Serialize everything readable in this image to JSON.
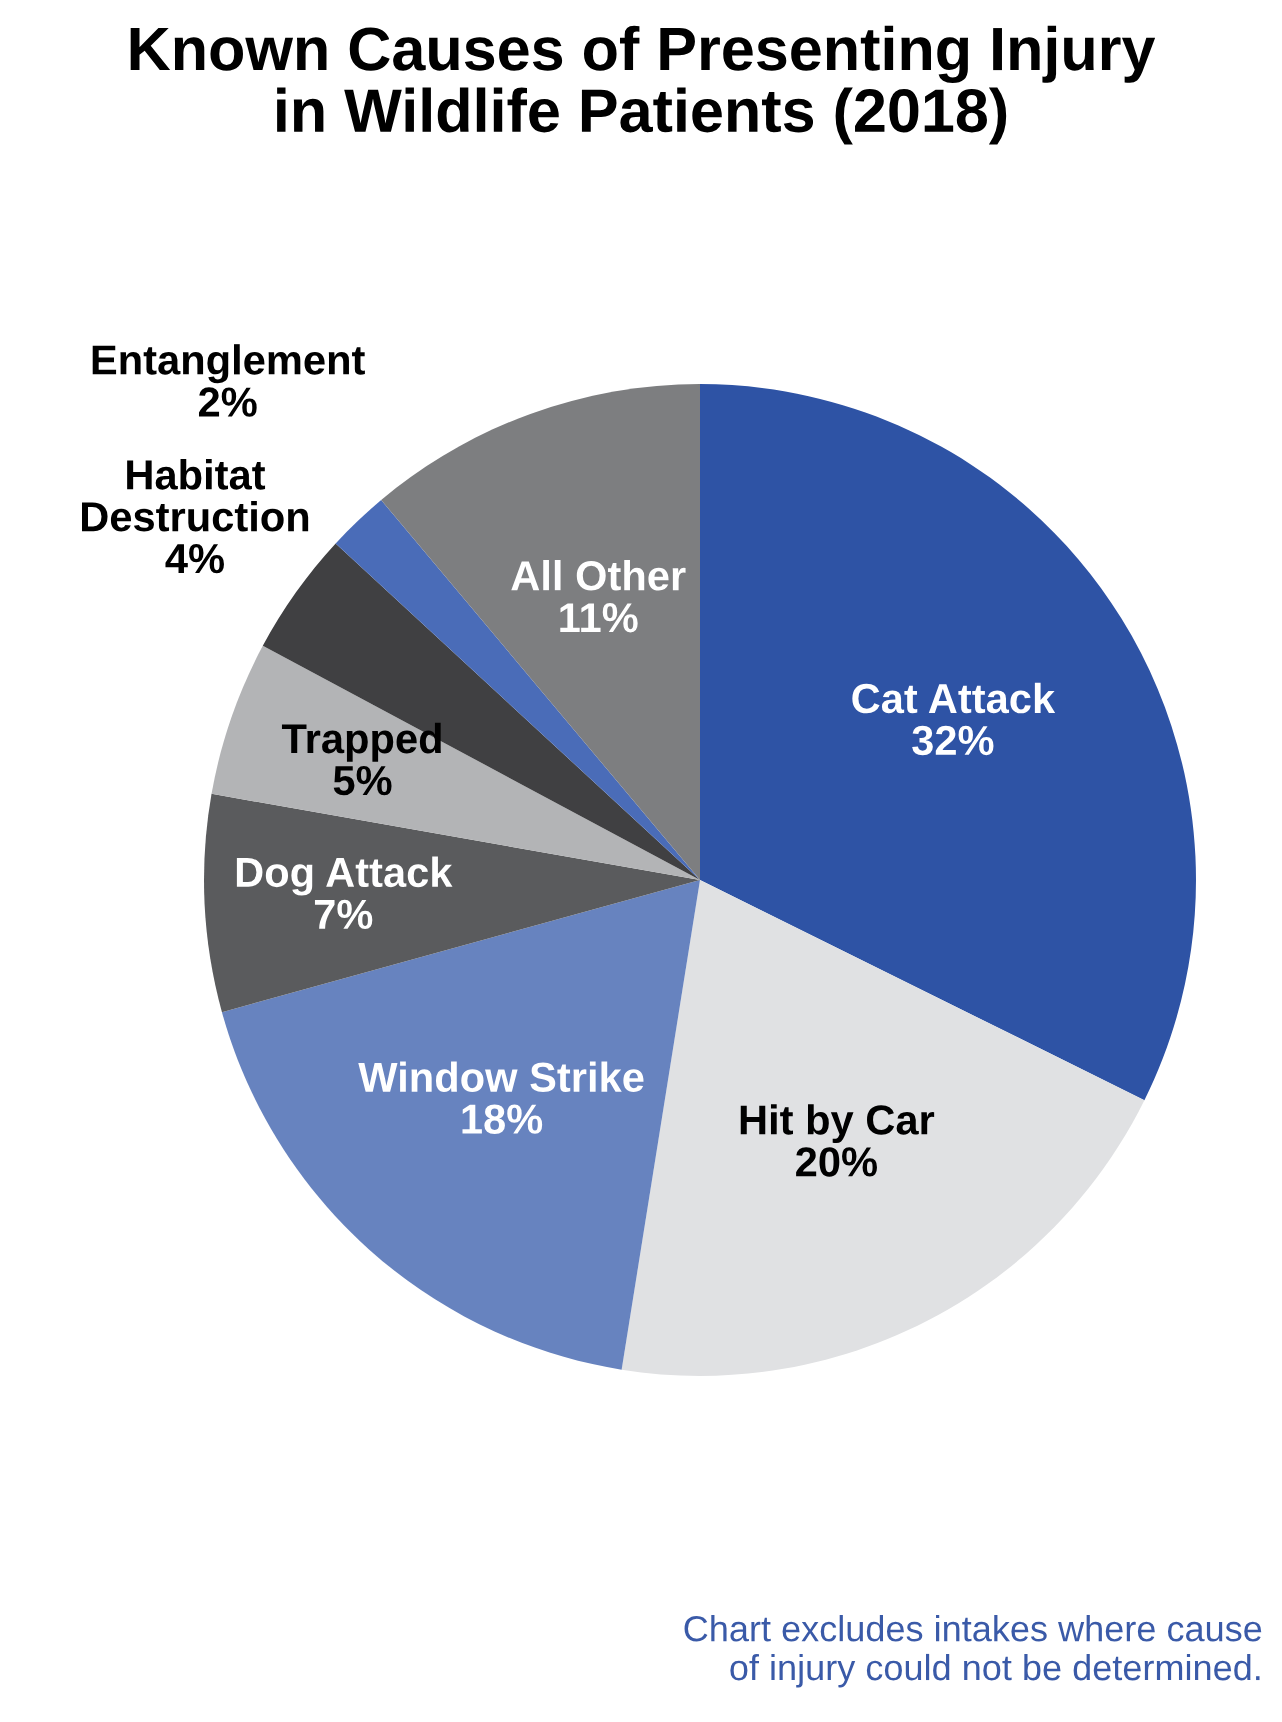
{
  "chart_data": {
    "type": "pie",
    "title": "Known Causes of Presenting Injury\nin Wildlife Patients (2018)",
    "categories": [
      "Cat Attack",
      "Hit by Car",
      "Window Strike",
      "Dog Attack",
      "Trapped",
      "Habitat\nDestruction",
      "Entanglement",
      "All Other"
    ],
    "values": [
      32,
      20,
      18,
      7,
      5,
      4,
      2,
      11
    ],
    "colors": [
      "#2e53a5",
      "#e0e1e3",
      "#6783bf",
      "#5a5b5d",
      "#b3b4b6",
      "#404042",
      "#4a6cb8",
      "#7d7e80"
    ],
    "value_labels": [
      "32%",
      "20%",
      "18%",
      "7%",
      "5%",
      "4%",
      "2%",
      "11%"
    ],
    "legend": false,
    "annotations": [
      "Chart excludes intakes where cause\nof injury could not be determined."
    ]
  }
}
